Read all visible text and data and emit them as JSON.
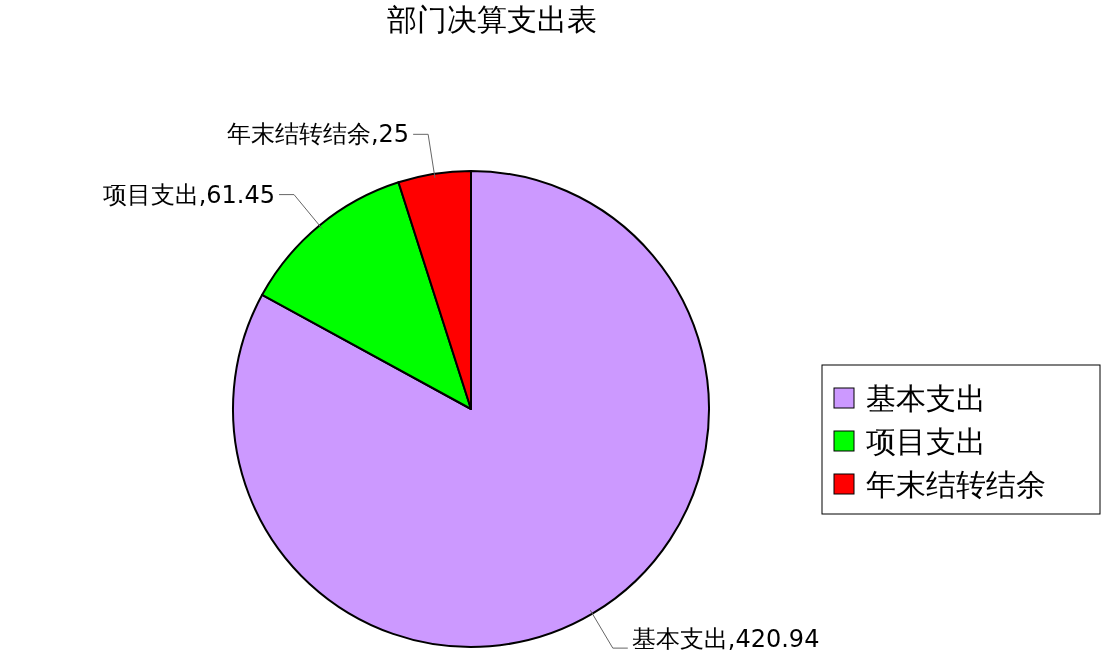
{
  "chart_data": {
    "type": "pie",
    "title": "部门决算支出表",
    "categories": [
      "基本支出",
      "项目支出",
      "年末结转结余"
    ],
    "values": [
      420.94,
      61.45,
      25
    ],
    "colors": [
      "#cc99ff",
      "#00ff00",
      "#ff0000"
    ],
    "value_labels": [
      ",420.94",
      ",61.45",
      ",25"
    ],
    "legend": "right"
  }
}
